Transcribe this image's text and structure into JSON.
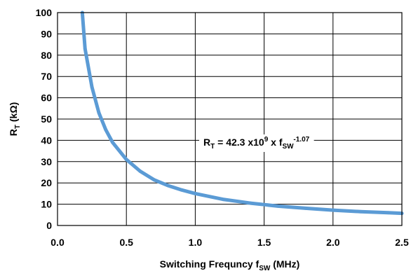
{
  "chart_data": {
    "type": "line",
    "title": "",
    "xlabel": {
      "main": "Switching Frequncy f",
      "sub": "SW",
      "suffix": " (MHz)"
    },
    "ylabel": {
      "main": "R",
      "sub": "T",
      "suffix": " (kΩ)"
    },
    "xlim": [
      0,
      2.5
    ],
    "ylim": [
      0,
      100
    ],
    "xticks": [
      0,
      0.5,
      1,
      1.5,
      2,
      2.5
    ],
    "xtick_labels": [
      "0.0",
      "0.5",
      "1.0",
      "1.5",
      "2.0",
      "2.5"
    ],
    "yticks": [
      0,
      10,
      20,
      30,
      40,
      50,
      60,
      70,
      80,
      90,
      100
    ],
    "ytick_labels": [
      "0",
      "10",
      "20",
      "30",
      "40",
      "50",
      "60",
      "70",
      "80",
      "90",
      "100"
    ],
    "grid": true,
    "series": [
      {
        "color": "#5b9bd5",
        "x": [
          0.18,
          0.2,
          0.25,
          0.3,
          0.35,
          0.4,
          0.5,
          0.6,
          0.7,
          0.8,
          0.9,
          1.0,
          1.2,
          1.4,
          1.6,
          1.8,
          2.0,
          2.2,
          2.4,
          2.5
        ],
        "y": [
          100,
          83,
          65,
          53,
          45,
          39,
          31,
          25.5,
          21.5,
          18.8,
          16.7,
          15.0,
          12.3,
          10.5,
          9.1,
          8.1,
          7.2,
          6.5,
          6.0,
          5.7
        ]
      }
    ],
    "annotation": {
      "prefix": "R",
      "prefix_sub": "T",
      "equals": " = 42.3 x10",
      "exp": "9",
      "times": " x f",
      "f_sub": "SW",
      "f_exp": "-1.07"
    }
  }
}
